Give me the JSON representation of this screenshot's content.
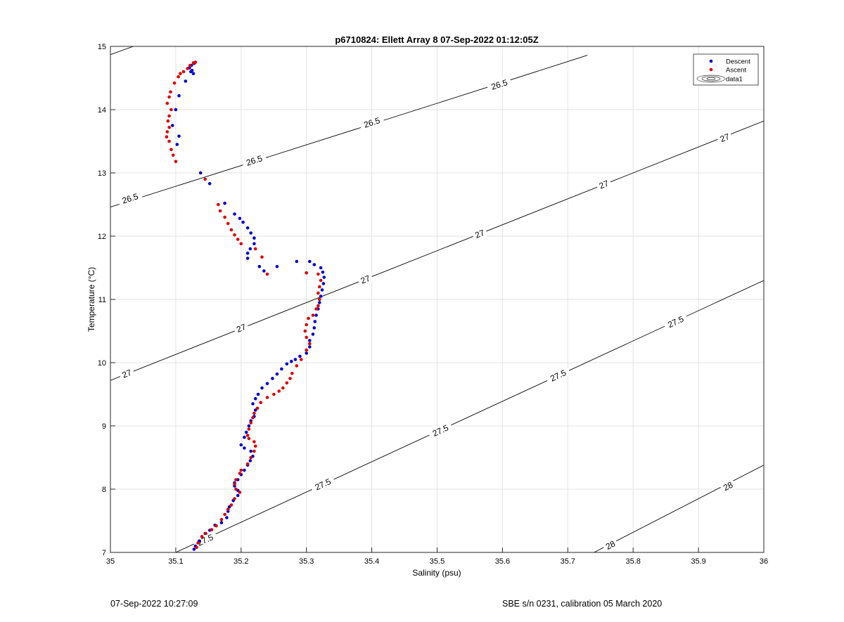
{
  "chart_data": {
    "type": "scatter",
    "title": "p6710824: Ellett Array 8 07-Sep-2022 01:12:05Z",
    "xlabel": "Salinity (psu)",
    "ylabel": "Temperature (°C)",
    "xlim": [
      35,
      36
    ],
    "ylim": [
      7,
      15
    ],
    "xticks": [
      "35",
      "35.1",
      "35.2",
      "35.3",
      "35.4",
      "35.5",
      "35.6",
      "35.7",
      "35.8",
      "35.9",
      "36"
    ],
    "yticks": [
      "7",
      "8",
      "9",
      "10",
      "11",
      "12",
      "13",
      "14",
      "15"
    ],
    "grid": true,
    "legend": {
      "position": "top-right",
      "entries": [
        "Descent",
        "Ascent",
        "data1"
      ]
    },
    "colors": {
      "descent": "#0000cc",
      "ascent": "#dd0000",
      "contour": "#000000",
      "grid": "#e3e3e3"
    },
    "series": [
      {
        "name": "Descent",
        "points": [
          [
            35.128,
            14.73
          ],
          [
            35.124,
            14.7
          ],
          [
            35.121,
            14.66
          ],
          [
            35.125,
            14.62
          ],
          [
            35.127,
            14.57
          ],
          [
            35.123,
            14.6
          ],
          [
            35.115,
            14.45
          ],
          [
            35.105,
            14.22
          ],
          [
            35.1,
            14.0
          ],
          [
            35.095,
            13.75
          ],
          [
            35.105,
            13.58
          ],
          [
            35.102,
            13.45
          ],
          [
            35.138,
            13.0
          ],
          [
            35.152,
            12.83
          ],
          [
            35.175,
            12.52
          ],
          [
            35.19,
            12.35
          ],
          [
            35.198,
            12.28
          ],
          [
            35.203,
            12.22
          ],
          [
            35.21,
            12.13
          ],
          [
            35.215,
            12.05
          ],
          [
            35.22,
            11.97
          ],
          [
            35.22,
            11.88
          ],
          [
            35.214,
            11.8
          ],
          [
            35.21,
            11.73
          ],
          [
            35.21,
            11.65
          ],
          [
            35.228,
            11.52
          ],
          [
            35.235,
            11.45
          ],
          [
            35.255,
            11.52
          ],
          [
            35.285,
            11.6
          ],
          [
            35.305,
            11.6
          ],
          [
            35.312,
            11.55
          ],
          [
            35.322,
            11.5
          ],
          [
            35.325,
            11.43
          ],
          [
            35.327,
            11.35
          ],
          [
            35.326,
            11.25
          ],
          [
            35.324,
            11.15
          ],
          [
            35.322,
            11.05
          ],
          [
            35.32,
            10.95
          ],
          [
            35.318,
            10.85
          ],
          [
            35.315,
            10.75
          ],
          [
            35.313,
            10.65
          ],
          [
            35.312,
            10.55
          ],
          [
            35.31,
            10.45
          ],
          [
            35.305,
            10.35
          ],
          [
            35.305,
            10.25
          ],
          [
            35.3,
            10.15
          ],
          [
            35.29,
            10.1
          ],
          [
            35.283,
            10.05
          ],
          [
            35.277,
            10.02
          ],
          [
            35.27,
            9.98
          ],
          [
            35.262,
            9.9
          ],
          [
            35.255,
            9.82
          ],
          [
            35.248,
            9.75
          ],
          [
            35.24,
            9.67
          ],
          [
            35.232,
            9.6
          ],
          [
            35.226,
            9.5
          ],
          [
            35.222,
            9.43
          ],
          [
            35.218,
            9.35
          ],
          [
            35.222,
            9.25
          ],
          [
            35.22,
            9.15
          ],
          [
            35.215,
            9.08
          ],
          [
            35.212,
            9.0
          ],
          [
            35.208,
            8.9
          ],
          [
            35.205,
            8.82
          ],
          [
            35.2,
            8.7
          ],
          [
            35.205,
            8.65
          ],
          [
            35.215,
            8.6
          ],
          [
            35.218,
            8.52
          ],
          [
            35.214,
            8.45
          ],
          [
            35.21,
            8.38
          ],
          [
            35.205,
            8.3
          ],
          [
            35.2,
            8.23
          ],
          [
            35.195,
            8.15
          ],
          [
            35.19,
            8.1
          ],
          [
            35.19,
            8.05
          ],
          [
            35.195,
            7.98
          ],
          [
            35.195,
            7.9
          ],
          [
            35.188,
            7.82
          ],
          [
            35.182,
            7.72
          ],
          [
            35.18,
            7.65
          ],
          [
            35.178,
            7.55
          ],
          [
            35.17,
            7.47
          ],
          [
            35.16,
            7.43
          ],
          [
            35.152,
            7.35
          ],
          [
            35.145,
            7.3
          ],
          [
            35.14,
            7.25
          ],
          [
            35.136,
            7.18
          ],
          [
            35.13,
            7.1
          ],
          [
            35.128,
            7.05
          ]
        ]
      },
      {
        "name": "Ascent",
        "points": [
          [
            35.13,
            14.75
          ],
          [
            35.127,
            14.74
          ],
          [
            35.122,
            14.7
          ],
          [
            35.118,
            14.65
          ],
          [
            35.112,
            14.6
          ],
          [
            35.107,
            14.57
          ],
          [
            35.104,
            14.52
          ],
          [
            35.098,
            14.42
          ],
          [
            35.092,
            14.28
          ],
          [
            35.09,
            14.2
          ],
          [
            35.087,
            14.1
          ],
          [
            35.093,
            14.0
          ],
          [
            35.09,
            13.9
          ],
          [
            35.088,
            13.82
          ],
          [
            35.09,
            13.72
          ],
          [
            35.087,
            13.65
          ],
          [
            35.086,
            13.57
          ],
          [
            35.09,
            13.5
          ],
          [
            35.093,
            13.37
          ],
          [
            35.096,
            13.28
          ],
          [
            35.1,
            13.18
          ],
          [
            35.145,
            12.9
          ],
          [
            35.165,
            12.5
          ],
          [
            35.168,
            12.4
          ],
          [
            35.175,
            12.3
          ],
          [
            35.18,
            12.2
          ],
          [
            35.185,
            12.1
          ],
          [
            35.19,
            12.02
          ],
          [
            35.195,
            11.95
          ],
          [
            35.2,
            11.88
          ],
          [
            35.222,
            11.8
          ],
          [
            35.232,
            11.67
          ],
          [
            35.24,
            11.4
          ],
          [
            35.3,
            11.42
          ],
          [
            35.318,
            11.4
          ],
          [
            35.322,
            11.3
          ],
          [
            35.32,
            11.2
          ],
          [
            35.318,
            11.1
          ],
          [
            35.32,
            11.0
          ],
          [
            35.318,
            10.9
          ],
          [
            35.315,
            10.85
          ],
          [
            35.31,
            10.75
          ],
          [
            35.303,
            10.7
          ],
          [
            35.3,
            10.6
          ],
          [
            35.298,
            10.5
          ],
          [
            35.3,
            10.4
          ],
          [
            35.305,
            10.3
          ],
          [
            35.3,
            10.2
          ],
          [
            35.292,
            10.05
          ],
          [
            35.285,
            9.95
          ],
          [
            35.278,
            9.83
          ],
          [
            35.275,
            9.75
          ],
          [
            35.27,
            9.68
          ],
          [
            35.264,
            9.6
          ],
          [
            35.258,
            9.55
          ],
          [
            35.25,
            9.5
          ],
          [
            35.24,
            9.45
          ],
          [
            35.23,
            9.37
          ],
          [
            35.225,
            9.28
          ],
          [
            35.22,
            9.2
          ],
          [
            35.218,
            9.13
          ],
          [
            35.215,
            9.05
          ],
          [
            35.212,
            8.95
          ],
          [
            35.21,
            8.85
          ],
          [
            35.212,
            8.8
          ],
          [
            35.22,
            8.75
          ],
          [
            35.222,
            8.68
          ],
          [
            35.22,
            8.6
          ],
          [
            35.215,
            8.5
          ],
          [
            35.21,
            8.4
          ],
          [
            35.2,
            8.3
          ],
          [
            35.198,
            8.25
          ],
          [
            35.192,
            8.15
          ],
          [
            35.19,
            8.08
          ],
          [
            35.192,
            8.0
          ],
          [
            35.198,
            7.95
          ],
          [
            35.19,
            7.85
          ],
          [
            35.185,
            7.75
          ],
          [
            35.18,
            7.68
          ],
          [
            35.175,
            7.6
          ],
          [
            35.17,
            7.52
          ],
          [
            35.162,
            7.42
          ],
          [
            35.155,
            7.36
          ],
          [
            35.146,
            7.3
          ],
          [
            35.14,
            7.25
          ],
          [
            35.134,
            7.15
          ],
          [
            35.132,
            7.08
          ]
        ]
      }
    ],
    "density_contours": [
      {
        "label": "26.5",
        "line": [
          [
            35.0,
            12.46
          ],
          [
            35.5,
            14.1
          ],
          [
            35.7,
            14.76
          ],
          [
            35.73,
            14.86
          ]
        ],
        "upper_left_stub": [
          [
            35.0,
            14.87
          ],
          [
            35.035,
            15.0
          ]
        ],
        "label_positions": [
          [
            35.03,
            12.6
          ],
          [
            35.22,
            13.2
          ],
          [
            35.4,
            13.8
          ],
          [
            35.595,
            14.4
          ]
        ]
      },
      {
        "label": "27",
        "line": [
          [
            35.0,
            9.72
          ],
          [
            36.0,
            13.82
          ]
        ],
        "label_positions": [
          [
            35.025,
            9.83
          ],
          [
            35.2,
            10.55
          ],
          [
            35.39,
            11.32
          ],
          [
            35.565,
            12.04
          ],
          [
            35.755,
            12.82
          ],
          [
            35.94,
            13.56
          ]
        ]
      },
      {
        "label": "27.5",
        "line": [
          [
            35.1,
            7.0
          ],
          [
            36.0,
            11.3
          ]
        ],
        "label_positions": [
          [
            35.145,
            7.2
          ],
          [
            35.325,
            8.08
          ],
          [
            35.505,
            8.93
          ],
          [
            35.685,
            9.8
          ],
          [
            35.865,
            10.65
          ]
        ]
      },
      {
        "label": "28",
        "line": [
          [
            35.74,
            7.0
          ],
          [
            36.0,
            8.38
          ]
        ],
        "label_positions": [
          [
            35.765,
            7.12
          ],
          [
            35.945,
            8.05
          ]
        ]
      }
    ]
  },
  "footer": {
    "left": "07-Sep-2022 10:27:09",
    "right": "SBE s/n 0231, calibration 05 March 2020"
  }
}
